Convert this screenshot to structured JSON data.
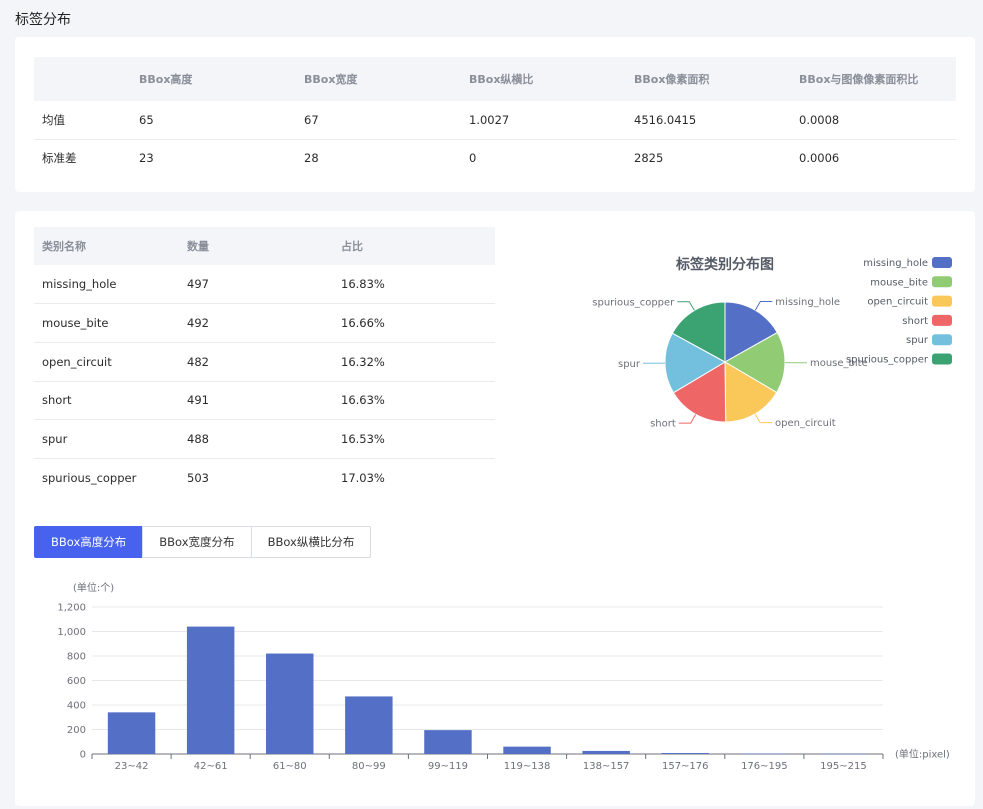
{
  "section_title": "标签分布",
  "stats": {
    "headers": [
      "",
      "BBox高度",
      "BBox宽度",
      "BBox纵横比",
      "BBox像素面积",
      "BBox与图像像素面积比"
    ],
    "rows": [
      [
        "均值",
        "65",
        "67",
        "1.0027",
        "4516.0415",
        "0.0008"
      ],
      [
        "标准差",
        "23",
        "28",
        "0",
        "2825",
        "0.0006"
      ]
    ]
  },
  "classes": {
    "headers": [
      "类别名称",
      "数量",
      "占比"
    ],
    "rows": [
      [
        "missing_hole",
        "497",
        "16.83%"
      ],
      [
        "mouse_bite",
        "492",
        "16.66%"
      ],
      [
        "open_circuit",
        "482",
        "16.32%"
      ],
      [
        "short",
        "491",
        "16.63%"
      ],
      [
        "spur",
        "488",
        "16.53%"
      ],
      [
        "spurious_copper",
        "503",
        "17.03%"
      ]
    ]
  },
  "tabs": [
    "BBox高度分布",
    "BBox宽度分布",
    "BBox纵横比分布"
  ],
  "active_tab": 0,
  "chart_data": [
    {
      "type": "pie",
      "title": "标签类别分布图",
      "legend_position": "top-right",
      "slices": [
        {
          "label": "missing_hole",
          "value": 497,
          "color": "#5470c6"
        },
        {
          "label": "mouse_bite",
          "value": 492,
          "color": "#91cc75"
        },
        {
          "label": "open_circuit",
          "value": 482,
          "color": "#fac858"
        },
        {
          "label": "short",
          "value": 491,
          "color": "#ee6666"
        },
        {
          "label": "spur",
          "value": 488,
          "color": "#73c0de"
        },
        {
          "label": "spurious_copper",
          "value": 503,
          "color": "#3ba272"
        }
      ]
    },
    {
      "type": "bar",
      "title": "",
      "ylabel": "(单位:个)",
      "xlabel": "(单位:pixel)",
      "categories": [
        "23~42",
        "42~61",
        "61~80",
        "80~99",
        "99~119",
        "119~138",
        "138~157",
        "157~176",
        "176~195",
        "195~215"
      ],
      "values": [
        340,
        1040,
        820,
        470,
        195,
        60,
        25,
        8,
        3,
        1
      ],
      "ylim": [
        0,
        1200
      ],
      "yticks": [
        "0",
        "200",
        "400",
        "600",
        "800",
        "1,000",
        "1,200"
      ],
      "color": "#5470c6",
      "grid": true
    }
  ]
}
